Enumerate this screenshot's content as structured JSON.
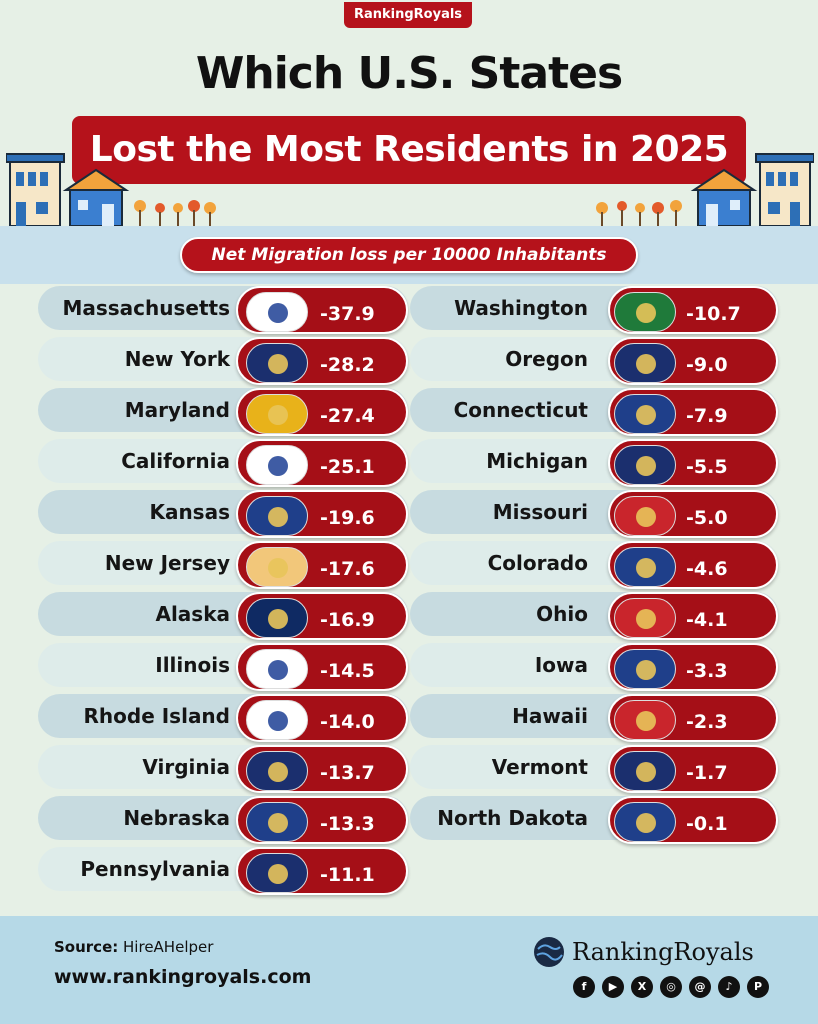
{
  "header": {
    "badge": "RankingRoyals",
    "title": "Which U.S. States",
    "subtitle": "Lost the Most Residents in 2025",
    "metric_label": "Net Migration loss per 10000 Inhabitants"
  },
  "chart_data": {
    "type": "table",
    "title": "Which U.S. States Lost the Most Residents in 2025",
    "subtitle": "Net Migration loss per 10000 Inhabitants",
    "columns": [
      [
        {
          "state": "Massachusetts",
          "value": "-37.9"
        },
        {
          "state": "New York",
          "value": "-28.2"
        },
        {
          "state": "Maryland",
          "value": "-27.4"
        },
        {
          "state": "California",
          "value": "-25.1"
        },
        {
          "state": "Kansas",
          "value": "-19.6"
        },
        {
          "state": "New Jersey",
          "value": "-17.6"
        },
        {
          "state": "Alaska",
          "value": "-16.9"
        },
        {
          "state": "Illinois",
          "value": "-14.5"
        },
        {
          "state": "Rhode Island",
          "value": "-14.0"
        },
        {
          "state": "Virginia",
          "value": "-13.7"
        },
        {
          "state": "Nebraska",
          "value": "-13.3"
        },
        {
          "state": "Pennsylvania",
          "value": "-11.1"
        }
      ],
      [
        {
          "state": "Washington",
          "value": "-10.7"
        },
        {
          "state": "Oregon",
          "value": "-9.0"
        },
        {
          "state": "Connecticut",
          "value": "-7.9"
        },
        {
          "state": "Michigan",
          "value": "-5.5"
        },
        {
          "state": "Missouri",
          "value": "-5.0"
        },
        {
          "state": "Colorado",
          "value": "-4.6"
        },
        {
          "state": "Ohio",
          "value": "-4.1"
        },
        {
          "state": "Iowa",
          "value": "-3.3"
        },
        {
          "state": "Hawaii",
          "value": "-2.3"
        },
        {
          "state": "Vermont",
          "value": "-1.7"
        },
        {
          "state": "North Dakota",
          "value": "-0.1"
        }
      ]
    ]
  },
  "flags": {
    "Massachusetts": "#ffffff",
    "New York": "#1b2f6e",
    "Maryland": "#e8b21a",
    "California": "#ffffff",
    "Kansas": "#1f3f8a",
    "New Jersey": "#f2c77a",
    "Alaska": "#0f2a63",
    "Illinois": "#ffffff",
    "Rhode Island": "#ffffff",
    "Virginia": "#1b2f6e",
    "Nebraska": "#1f3f8a",
    "Pennsylvania": "#1b2f6e",
    "Washington": "#1f7a3a",
    "Oregon": "#1b2f6e",
    "Connecticut": "#1f3f8a",
    "Michigan": "#1b2f6e",
    "Missouri": "#c9252c",
    "Colorado": "#1f3f8a",
    "Ohio": "#c9252c",
    "Iowa": "#1f3f8a",
    "Hawaii": "#c9252c",
    "Vermont": "#1b2f6e",
    "North Dakota": "#1f3f8a"
  },
  "footer": {
    "source_label": "Source:",
    "source_value": "HireAHelper",
    "url": "www.rankingroyals.com",
    "brand": "RankingRoyals",
    "social_icons": [
      "facebook-icon",
      "youtube-icon",
      "x-icon",
      "instagram-icon",
      "threads-icon",
      "tiktok-icon",
      "pinterest-icon"
    ]
  },
  "colors": {
    "accent": "#b5121b",
    "background": "#e6f0e6",
    "footer_bg": "#b6d9e7"
  }
}
